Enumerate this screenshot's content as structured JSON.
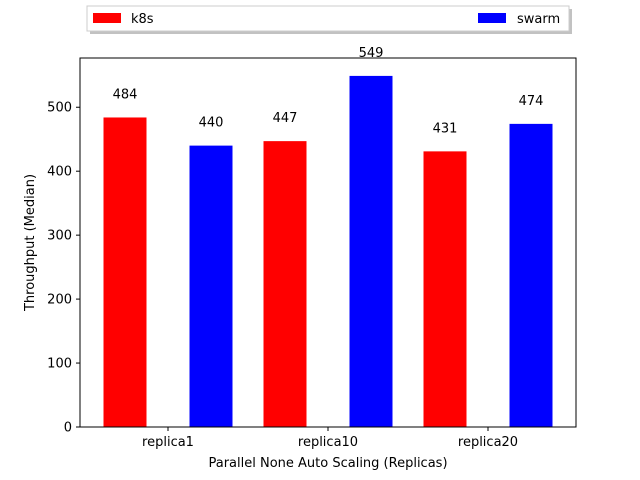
{
  "chart_data": {
    "type": "bar",
    "categories": [
      "replica1",
      "replica10",
      "replica20"
    ],
    "series": [
      {
        "name": "k8s",
        "color": "#ff0000",
        "values": [
          484,
          447,
          431
        ]
      },
      {
        "name": "swarm",
        "color": "#0000ff",
        "values": [
          440,
          549,
          474
        ]
      }
    ],
    "xlabel": "Parallel None Auto Scaling (Replicas)",
    "ylabel": "Throughput (Median)",
    "ylim": [
      0,
      577
    ],
    "yticks": [
      0,
      100,
      200,
      300,
      400,
      500
    ],
    "grid": false,
    "legend": "top (above plot, spanning width)"
  }
}
